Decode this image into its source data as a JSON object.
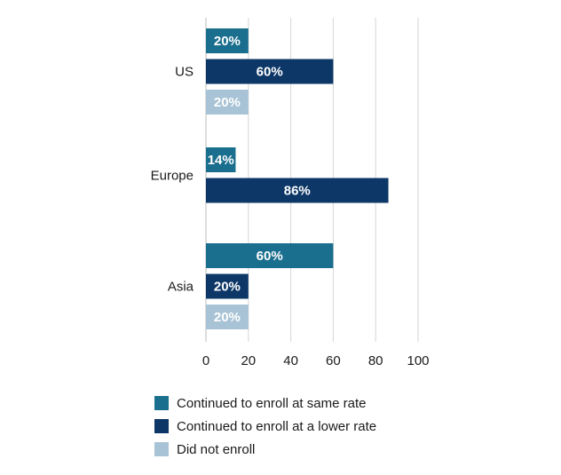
{
  "chart_data": {
    "type": "bar",
    "orientation": "horizontal",
    "categories": [
      "US",
      "Europe",
      "Asia"
    ],
    "series": [
      {
        "name": "Continued to enroll at same rate",
        "color": "#1a6e8e",
        "values": [
          20,
          14,
          60
        ],
        "labels": [
          "20%",
          "14%",
          "60%"
        ]
      },
      {
        "name": "Continued to enroll at a lower rate",
        "color": "#0d3767",
        "values": [
          60,
          86,
          20
        ],
        "labels": [
          "60%",
          "86%",
          "20%"
        ]
      },
      {
        "name": "Did not enroll",
        "color": "#a9c3d6",
        "values": [
          20,
          0,
          20
        ],
        "labels": [
          "20%",
          "",
          "20%"
        ]
      }
    ],
    "xlim": [
      0,
      100
    ],
    "xticks": [
      "0",
      "20",
      "40",
      "60",
      "80",
      "100"
    ],
    "grid": true,
    "legend_position": "bottom"
  }
}
